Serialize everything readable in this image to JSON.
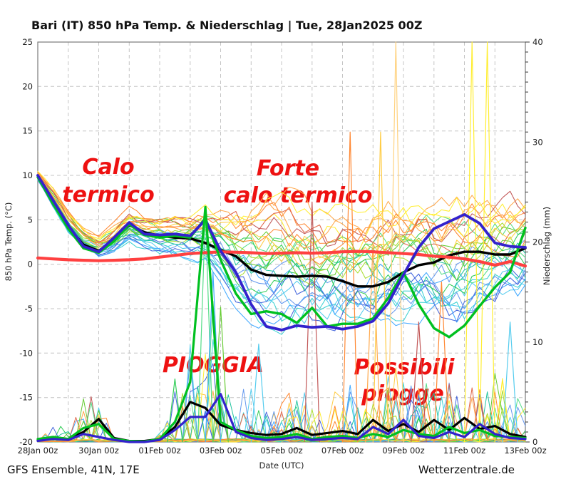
{
  "title": "Bari  (IT)  850 hPa Temp. & Niederschlag | Tue, 28Jan2025 00Z",
  "footer": {
    "left": "GFS Ensemble, 41N, 17E",
    "right": "Wetterzentrale.de"
  },
  "annotations": [
    {
      "name": "calo-termico",
      "lines": [
        "Calo",
        "termico"
      ]
    },
    {
      "name": "forte-calo-termico",
      "lines": [
        "Forte",
        "calo termico"
      ]
    },
    {
      "name": "pioggia",
      "lines": [
        "PIOGGIA"
      ]
    },
    {
      "name": "possibili-piogge",
      "lines": [
        "Possibili",
        "piogge"
      ]
    }
  ],
  "colors": {
    "annotation": "#ee1111",
    "ensemble_mean": "#000000",
    "operational": "#3322cc",
    "control": "#00c020",
    "climate_mean": "#ff4040",
    "grid": "#c4c4c4",
    "border": "#7a7a7a"
  },
  "chart_data": {
    "type": "line",
    "title": "Bari  (IT)  850 hPa Temp. & Niederschlag | Tue, 28Jan2025 00Z",
    "x_axis": {
      "label": "Date (UTC)",
      "labels": [
        "28Jan 00z",
        "30Jan 00z",
        "01Feb 00z",
        "03Feb 00z",
        "05Feb 00z",
        "07Feb 00z",
        "09Feb 00z",
        "11Feb 00z",
        "13Feb 00z"
      ],
      "days_total": 16,
      "gridline_every_days": 1
    },
    "y_left": {
      "label": "850 hPa Temp. (°C)",
      "min": -20,
      "max": 25,
      "step": 5
    },
    "y_right": {
      "label": "Niederschlag (mm)",
      "min": 0,
      "max": 40,
      "step": 10,
      "minor_step": 1
    },
    "time_step_hours": 12,
    "series": [
      {
        "name": "ensemble-mean-temperature",
        "axis": "left",
        "color": "#000000",
        "width": 3.4,
        "values": [
          10,
          7,
          4.2,
          2.2,
          1.5,
          2.8,
          4.4,
          3.6,
          3.2,
          3.0,
          2.9,
          2.4,
          1.6,
          0.9,
          -0.6,
          -1.2,
          -1.3,
          -1.4,
          -1.3,
          -1.4,
          -1.9,
          -2.5,
          -2.5,
          -2.0,
          -0.9,
          -0.1,
          0.2,
          1.0,
          1.4,
          1.4,
          1.1,
          1.1,
          1.8
        ]
      },
      {
        "name": "climate-mean-temperature",
        "axis": "left",
        "color": "#ff4040",
        "width": 4.2,
        "values": [
          0.7,
          0.6,
          0.5,
          0.45,
          0.4,
          0.45,
          0.5,
          0.6,
          0.8,
          1.0,
          1.2,
          1.3,
          1.4,
          1.35,
          1.3,
          1.2,
          1.25,
          1.3,
          1.25,
          1.3,
          1.4,
          1.45,
          1.4,
          1.3,
          1.2,
          1.1,
          0.9,
          0.8,
          0.6,
          0.3,
          -0.1,
          0.3,
          -0.2
        ]
      },
      {
        "name": "control-run-temperature",
        "axis": "left",
        "color": "#00c020",
        "width": 3.4,
        "values": [
          9.8,
          6.8,
          4.0,
          1.8,
          1.3,
          2.6,
          4.5,
          3.3,
          3.0,
          3.2,
          3.0,
          5.2,
          0.5,
          -3.3,
          -5.6,
          -5.3,
          -5.6,
          -6.6,
          -4.9,
          -7.0,
          -6.7,
          -6.7,
          -6.1,
          -3.8,
          -0.9,
          -4.5,
          -7.2,
          -8.2,
          -6.9,
          -4.7,
          -2.6,
          -0.9,
          4.1
        ]
      },
      {
        "name": "operational-run-temperature",
        "axis": "left",
        "color": "#3322cc",
        "width": 3.8,
        "values": [
          10,
          7.2,
          4.4,
          2.0,
          1.4,
          3.0,
          4.7,
          3.4,
          3.3,
          3.4,
          3.2,
          5.0,
          1.5,
          -0.9,
          -4.5,
          -7.0,
          -7.4,
          -6.9,
          -7.1,
          -7.0,
          -7.3,
          -7.0,
          -6.4,
          -4.4,
          -1.2,
          1.9,
          4.0,
          4.8,
          5.6,
          4.6,
          2.4,
          2.0,
          1.9
        ]
      },
      {
        "name": "ensemble-mean-precipitation",
        "axis": "right",
        "color": "#000000",
        "width": 3.2,
        "values": [
          0.2,
          0.5,
          0.3,
          1.0,
          2.3,
          0.4,
          0.1,
          0.1,
          0.3,
          1.5,
          4.0,
          3.4,
          1.7,
          1.2,
          0.9,
          0.7,
          0.8,
          1.4,
          0.7,
          0.9,
          1.1,
          0.8,
          2.2,
          1.1,
          1.8,
          1.0,
          2.2,
          1.2,
          2.4,
          1.3,
          1.6,
          0.8,
          0.5
        ]
      },
      {
        "name": "control-run-precipitation",
        "axis": "right",
        "color": "#00c020",
        "width": 3.2,
        "values": [
          0.3,
          0.5,
          0.3,
          1.4,
          1.8,
          0.3,
          0.1,
          0.05,
          0.3,
          2.0,
          6.0,
          23.5,
          2.0,
          1.2,
          0.6,
          0.4,
          0.5,
          0.8,
          0.3,
          0.5,
          0.6,
          0.4,
          0.8,
          0.5,
          1.2,
          0.8,
          0.6,
          1.5,
          0.9,
          1.2,
          0.6,
          0.5,
          0.4
        ]
      },
      {
        "name": "operational-run-precipitation",
        "axis": "right",
        "color": "#3322cc",
        "width": 3.2,
        "values": [
          0.1,
          0.3,
          0.2,
          0.8,
          0.5,
          0.2,
          0,
          0,
          0.2,
          1.2,
          2.5,
          2.5,
          4.8,
          1.0,
          0.4,
          0.2,
          0.3,
          0.5,
          0.2,
          0.3,
          0.4,
          0.3,
          1.5,
          0.8,
          2.2,
          0.6,
          0.4,
          1.0,
          0.5,
          1.8,
          0.8,
          0.4,
          0.3
        ]
      }
    ],
    "ensemble": {
      "member_count": 30,
      "seed": 20250128,
      "temp_envelope_min": [
        9.4,
        6.2,
        3.4,
        1.2,
        0.3,
        0.8,
        1.8,
        1.0,
        0.6,
        0.3,
        0.0,
        -0.5,
        -2.5,
        -5.0,
        -6.8,
        -7.6,
        -8.0,
        -8.2,
        -8.3,
        -8.5,
        -8.3,
        -8.0,
        -7.8,
        -7.2,
        -6.6,
        -6.8,
        -7.8,
        -8.6,
        -8.2,
        -6.2,
        -5.2,
        -4.6,
        -4.5
      ],
      "temp_envelope_max": [
        10.6,
        8.8,
        6.2,
        4.4,
        3.6,
        4.8,
        6.6,
        6.2,
        6.0,
        6.2,
        6.5,
        7.0,
        7.2,
        7.8,
        8.4,
        9.2,
        9.0,
        8.6,
        8.0,
        7.8,
        7.8,
        8.0,
        8.2,
        8.6,
        8.8,
        9.0,
        9.0,
        9.2,
        9.0,
        9.0,
        9.2,
        9.4,
        9.4
      ],
      "rain_window": [
        0.3,
        0.6,
        0.5,
        1.8,
        2.2,
        0.5,
        0.1,
        0.05,
        0.5,
        2.2,
        4.5,
        5.5,
        4.5,
        3,
        2.2,
        1.8,
        1.8,
        2.2,
        1.4,
        1.4,
        1.8,
        2.2,
        2.6,
        2.2,
        3,
        2.6,
        2.6,
        3,
        3,
        3,
        2.6,
        2.2,
        1.8
      ],
      "palette": [
        "#3dd2d2",
        "#55ccee",
        "#44aaff",
        "#6699ee",
        "#4466dd",
        "#22c4a0",
        "#2fcc55",
        "#55dd88",
        "#66cc33",
        "#aadd33",
        "#ffee33",
        "#ffcc44",
        "#ffa94d",
        "#ff8833",
        "#e06648",
        "#c25858"
      ],
      "feature_spikes": [
        {
          "t6": 18,
          "mm": 6.3,
          "color": "#2fcc55"
        },
        {
          "t6": 22,
          "mm": 23,
          "color": "#55dd88"
        },
        {
          "t6": 23,
          "mm": 17,
          "color": "#44aaff"
        },
        {
          "t6": 24,
          "mm": 13.5,
          "color": "#66cc33"
        },
        {
          "t6": 29,
          "mm": 9.8,
          "color": "#55ccee"
        },
        {
          "t6": 36,
          "mm": 24,
          "color": "#c25858"
        },
        {
          "t6": 41,
          "mm": 31,
          "color": "#ff8833"
        },
        {
          "t6": 44,
          "mm": 20,
          "color": "#ffa94d"
        },
        {
          "t6": 45,
          "mm": 31,
          "color": "#ffcc44"
        },
        {
          "t6": 47,
          "mm": 40,
          "color": "#ffd27f"
        },
        {
          "t6": 50,
          "mm": 12,
          "color": "#c25858"
        },
        {
          "t6": 53,
          "mm": 16,
          "color": "#ff8833"
        },
        {
          "t6": 57,
          "mm": 40,
          "color": "#ffee33"
        },
        {
          "t6": 59,
          "mm": 40,
          "color": "#ffee33"
        },
        {
          "t6": 62,
          "mm": 12,
          "color": "#55ccee"
        }
      ]
    }
  }
}
